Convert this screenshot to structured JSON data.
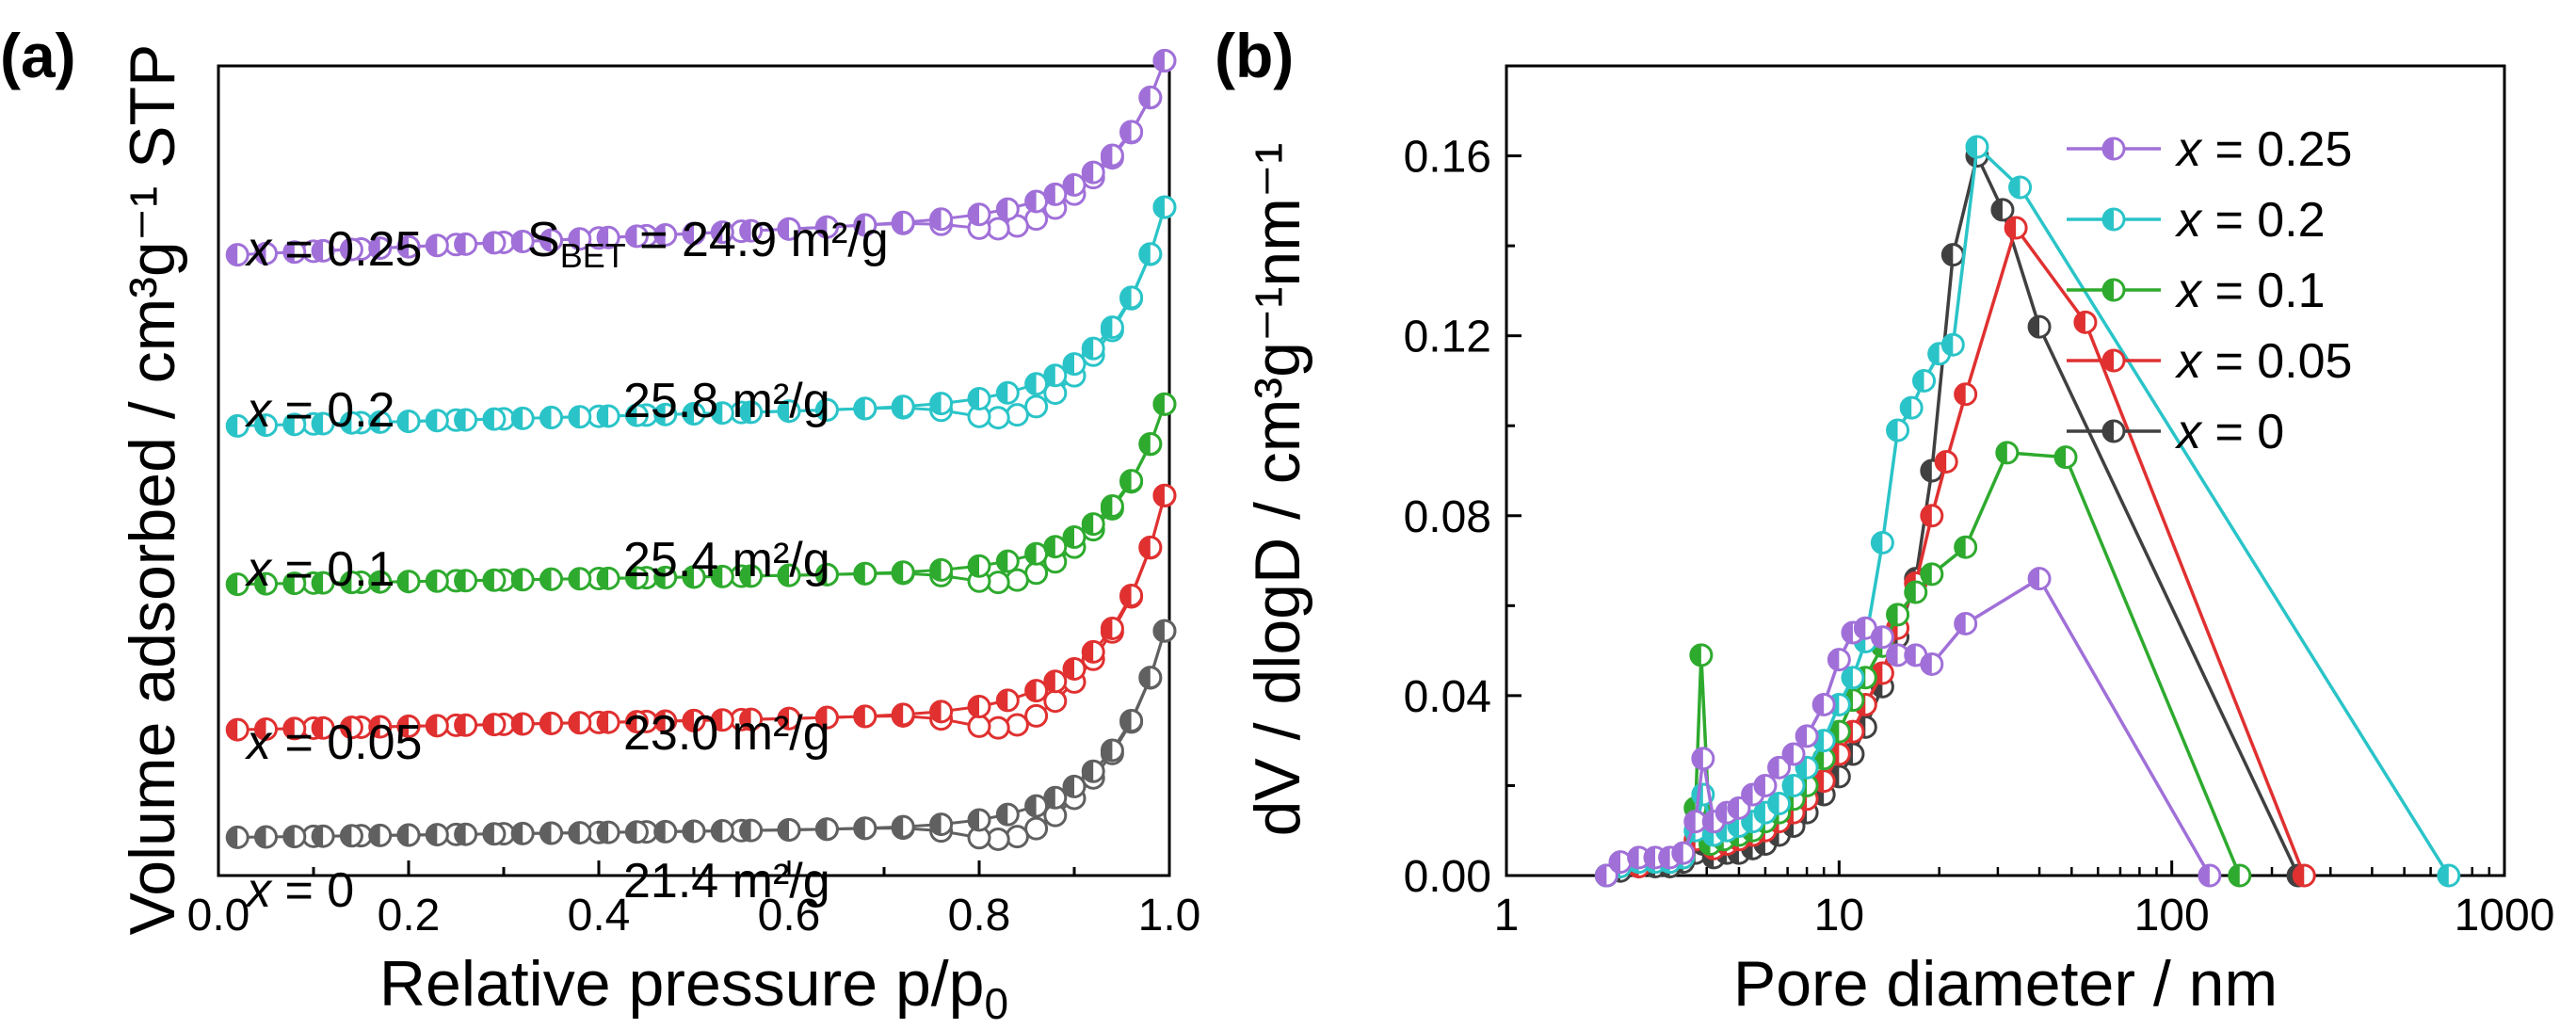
{
  "chart_data": [
    {
      "panel_label": "(a)",
      "type": "line",
      "title": "",
      "xlabel": "Relative pressure p/p",
      "xlabel_sub": "0",
      "ylabel": "Volume adsorbed / cm³g⁻¹ STP",
      "xlim": [
        0.0,
        1.0
      ],
      "xticks": [
        "0.0",
        "0.2",
        "0.4",
        "0.6",
        "0.8",
        "1.0"
      ],
      "ylim": [
        0,
        6.4
      ],
      "y_ticks_shown": false,
      "bet_prefix": "S",
      "bet_prefix_sub": "BET",
      "bet_eq": " = ",
      "series": [
        {
          "name": "x = 0.25",
          "var": "x",
          "eq": " = 0.25",
          "color": "#a070d8",
          "offset": 4.9,
          "plateau_slope": 0.35,
          "rise": 1.05,
          "bet_value": "24.9",
          "bet_unit": " m²/g",
          "adsorption_x": [
            0.02,
            0.05,
            0.08,
            0.11,
            0.14,
            0.17,
            0.2,
            0.23,
            0.26,
            0.29,
            0.32,
            0.35,
            0.38,
            0.41,
            0.44,
            0.47,
            0.5,
            0.53,
            0.56,
            0.6,
            0.64,
            0.68,
            0.72,
            0.76,
            0.8,
            0.83,
            0.86,
            0.88,
            0.9,
            0.92,
            0.94,
            0.96,
            0.98,
            0.995
          ],
          "desorption_x": [
            0.995,
            0.98,
            0.96,
            0.94,
            0.92,
            0.9,
            0.88,
            0.86,
            0.84,
            0.82,
            0.8,
            0.76,
            0.72,
            0.68,
            0.64,
            0.6,
            0.55,
            0.5,
            0.45,
            0.4,
            0.35,
            0.3,
            0.25,
            0.2,
            0.15,
            0.1
          ]
        },
        {
          "name": "x = 0.2",
          "var": "x",
          "eq": " = 0.2",
          "color": "#2ac4c8",
          "offset": 3.55,
          "plateau_slope": 0.2,
          "rise": 1.35,
          "bet_value": "25.8",
          "bet_unit": " m²/g",
          "adsorption_x": [
            0.02,
            0.05,
            0.08,
            0.11,
            0.14,
            0.17,
            0.2,
            0.23,
            0.26,
            0.29,
            0.32,
            0.35,
            0.38,
            0.41,
            0.44,
            0.47,
            0.5,
            0.53,
            0.56,
            0.6,
            0.64,
            0.68,
            0.72,
            0.76,
            0.8,
            0.83,
            0.86,
            0.88,
            0.9,
            0.92,
            0.94,
            0.96,
            0.98,
            0.995
          ],
          "desorption_x": [
            0.995,
            0.98,
            0.96,
            0.94,
            0.92,
            0.9,
            0.88,
            0.86,
            0.84,
            0.82,
            0.8,
            0.76,
            0.72,
            0.68,
            0.64,
            0.6,
            0.55,
            0.5,
            0.45,
            0.4,
            0.35,
            0.3,
            0.25,
            0.2,
            0.15,
            0.1
          ]
        },
        {
          "name": "x = 0.1",
          "var": "x",
          "eq": " = 0.1",
          "color": "#2eaa2e",
          "offset": 2.3,
          "plateau_slope": 0.12,
          "rise": 1.15,
          "bet_value": "25.4",
          "bet_unit": " m²/g",
          "adsorption_x": [
            0.02,
            0.05,
            0.08,
            0.11,
            0.14,
            0.17,
            0.2,
            0.23,
            0.26,
            0.29,
            0.32,
            0.35,
            0.38,
            0.41,
            0.44,
            0.47,
            0.5,
            0.53,
            0.56,
            0.6,
            0.64,
            0.68,
            0.72,
            0.76,
            0.8,
            0.83,
            0.86,
            0.88,
            0.9,
            0.92,
            0.94,
            0.96,
            0.98,
            0.995
          ],
          "desorption_x": [
            0.995,
            0.98,
            0.96,
            0.94,
            0.92,
            0.9,
            0.88,
            0.86,
            0.84,
            0.82,
            0.8,
            0.76,
            0.72,
            0.68,
            0.64,
            0.6,
            0.55,
            0.5,
            0.45,
            0.4,
            0.35,
            0.3,
            0.25,
            0.2,
            0.15,
            0.1
          ]
        },
        {
          "name": "x = 0.05",
          "var": "x",
          "eq": " = 0.05",
          "color": "#e03030",
          "offset": 1.15,
          "plateau_slope": 0.15,
          "rise": 1.5,
          "bet_value": "23.0",
          "bet_unit": " m²/g",
          "adsorption_x": [
            0.02,
            0.05,
            0.08,
            0.11,
            0.14,
            0.17,
            0.2,
            0.23,
            0.26,
            0.29,
            0.32,
            0.35,
            0.38,
            0.41,
            0.44,
            0.47,
            0.5,
            0.53,
            0.56,
            0.6,
            0.64,
            0.68,
            0.72,
            0.76,
            0.8,
            0.83,
            0.86,
            0.88,
            0.9,
            0.92,
            0.94,
            0.96,
            0.98,
            0.995
          ],
          "desorption_x": [
            0.995,
            0.98,
            0.96,
            0.94,
            0.92,
            0.9,
            0.88,
            0.86,
            0.84,
            0.82,
            0.8,
            0.76,
            0.72,
            0.68,
            0.64,
            0.6,
            0.55,
            0.5,
            0.45,
            0.4,
            0.35,
            0.3,
            0.25,
            0.2,
            0.15,
            0.1
          ]
        },
        {
          "name": "x = 0",
          "var": "x",
          "eq": " = 0",
          "color": "#606060",
          "offset": 0.3,
          "plateau_slope": 0.1,
          "rise": 1.35,
          "bet_value": "21.4",
          "bet_unit": " m²/g",
          "adsorption_x": [
            0.02,
            0.05,
            0.08,
            0.11,
            0.14,
            0.17,
            0.2,
            0.23,
            0.26,
            0.29,
            0.32,
            0.35,
            0.38,
            0.41,
            0.44,
            0.47,
            0.5,
            0.53,
            0.56,
            0.6,
            0.64,
            0.68,
            0.72,
            0.76,
            0.8,
            0.83,
            0.86,
            0.88,
            0.9,
            0.92,
            0.94,
            0.96,
            0.98,
            0.995
          ],
          "desorption_x": [
            0.995,
            0.98,
            0.96,
            0.94,
            0.92,
            0.9,
            0.88,
            0.86,
            0.84,
            0.82,
            0.8,
            0.76,
            0.72,
            0.68,
            0.64,
            0.6,
            0.55,
            0.5,
            0.45,
            0.4,
            0.35,
            0.3,
            0.25,
            0.2,
            0.15,
            0.1
          ]
        }
      ]
    },
    {
      "panel_label": "(b)",
      "type": "line",
      "title": "",
      "xlabel": "Pore diameter / nm",
      "ylabel": "dV / dlogD / cm³g⁻¹nm⁻¹",
      "xscale": "log",
      "xlim": [
        1,
        1000
      ],
      "xticks": [
        1,
        10,
        100,
        1000
      ],
      "xtick_labels": [
        "1",
        "10",
        "100",
        "1000"
      ],
      "ylim": [
        0,
        0.18
      ],
      "yticks": [
        0,
        0.04,
        0.08,
        0.12,
        0.16
      ],
      "ytick_labels": [
        "0.00",
        "0.04",
        "0.08",
        "0.12",
        "0.16"
      ],
      "legend_position": "top-right",
      "series": [
        {
          "name": "x = 0.25",
          "var": "x",
          "eq": " = 0.25",
          "color": "#a070d8",
          "x": [
            2.0,
            2.2,
            2.5,
            2.8,
            3.1,
            3.4,
            3.7,
            3.9,
            4.2,
            4.6,
            5.0,
            5.5,
            6.0,
            6.6,
            7.3,
            8.0,
            9.0,
            10.0,
            11.0,
            12.0,
            13.5,
            15.0,
            17.0,
            19.0,
            24.0,
            40.0,
            130.0
          ],
          "y": [
            0.0,
            0.003,
            0.004,
            0.004,
            0.004,
            0.005,
            0.012,
            0.026,
            0.012,
            0.014,
            0.015,
            0.018,
            0.02,
            0.024,
            0.027,
            0.031,
            0.038,
            0.048,
            0.054,
            0.055,
            0.053,
            0.049,
            0.049,
            0.047,
            0.056,
            0.066,
            0.0
          ]
        },
        {
          "name": "x = 0.2",
          "var": "x",
          "eq": " = 0.2",
          "color": "#2ac4c8",
          "x": [
            2.0,
            2.2,
            2.5,
            2.8,
            3.1,
            3.4,
            3.7,
            3.9,
            4.2,
            4.6,
            5.0,
            5.5,
            6.0,
            6.6,
            7.3,
            8.0,
            9.0,
            10.0,
            11.0,
            12.0,
            13.5,
            15.0,
            16.5,
            18.0,
            20.0,
            22.0,
            26.0,
            35.0,
            680.0
          ],
          "y": [
            0.0,
            0.002,
            0.003,
            0.003,
            0.003,
            0.004,
            0.01,
            0.018,
            0.009,
            0.01,
            0.011,
            0.012,
            0.014,
            0.016,
            0.02,
            0.024,
            0.03,
            0.038,
            0.044,
            0.052,
            0.074,
            0.099,
            0.104,
            0.11,
            0.116,
            0.118,
            0.162,
            0.153,
            0.0
          ]
        },
        {
          "name": "x = 0.1",
          "var": "x",
          "eq": " = 0.1",
          "color": "#2eaa2e",
          "x": [
            2.0,
            2.2,
            2.5,
            2.8,
            3.1,
            3.4,
            3.7,
            3.85,
            4.1,
            4.5,
            5.0,
            5.5,
            6.0,
            6.6,
            7.3,
            8.0,
            9.0,
            10.0,
            11.0,
            12.0,
            13.5,
            15.0,
            17.0,
            19.0,
            24.0,
            32.0,
            48.0,
            160.0
          ],
          "y": [
            0.0,
            0.002,
            0.003,
            0.003,
            0.003,
            0.004,
            0.015,
            0.049,
            0.007,
            0.008,
            0.009,
            0.01,
            0.012,
            0.014,
            0.017,
            0.02,
            0.026,
            0.032,
            0.039,
            0.044,
            0.051,
            0.058,
            0.063,
            0.067,
            0.073,
            0.094,
            0.093,
            0.0
          ]
        },
        {
          "name": "x = 0.05",
          "var": "x",
          "eq": " = 0.05",
          "color": "#e03030",
          "x": [
            2.0,
            2.2,
            2.5,
            2.8,
            3.1,
            3.4,
            3.7,
            3.9,
            4.2,
            4.6,
            5.0,
            5.5,
            6.0,
            6.6,
            7.3,
            8.0,
            9.0,
            10.0,
            11.0,
            12.0,
            13.5,
            15.0,
            17.0,
            19.0,
            21.0,
            24.0,
            34.0,
            55.0,
            250.0
          ],
          "y": [
            0.0,
            0.002,
            0.002,
            0.003,
            0.003,
            0.004,
            0.008,
            0.011,
            0.006,
            0.007,
            0.008,
            0.009,
            0.01,
            0.012,
            0.014,
            0.017,
            0.021,
            0.027,
            0.032,
            0.038,
            0.045,
            0.055,
            0.065,
            0.08,
            0.092,
            0.107,
            0.144,
            0.123,
            0.0
          ]
        },
        {
          "name": "x = 0",
          "var": "x",
          "eq": " = 0",
          "color": "#404040",
          "x": [
            2.0,
            2.2,
            2.5,
            2.8,
            3.1,
            3.4,
            3.7,
            3.9,
            4.2,
            4.6,
            5.0,
            5.5,
            6.0,
            6.6,
            7.3,
            8.0,
            9.0,
            10.0,
            11.0,
            12.0,
            13.5,
            15.0,
            17.0,
            19.0,
            22.0,
            26.0,
            31.0,
            40.0,
            240.0
          ],
          "y": [
            0.0,
            0.001,
            0.002,
            0.002,
            0.002,
            0.003,
            0.005,
            0.007,
            0.004,
            0.005,
            0.005,
            0.006,
            0.007,
            0.009,
            0.011,
            0.014,
            0.018,
            0.022,
            0.027,
            0.033,
            0.042,
            0.053,
            0.066,
            0.09,
            0.138,
            0.16,
            0.148,
            0.122,
            0.0
          ]
        }
      ]
    }
  ]
}
